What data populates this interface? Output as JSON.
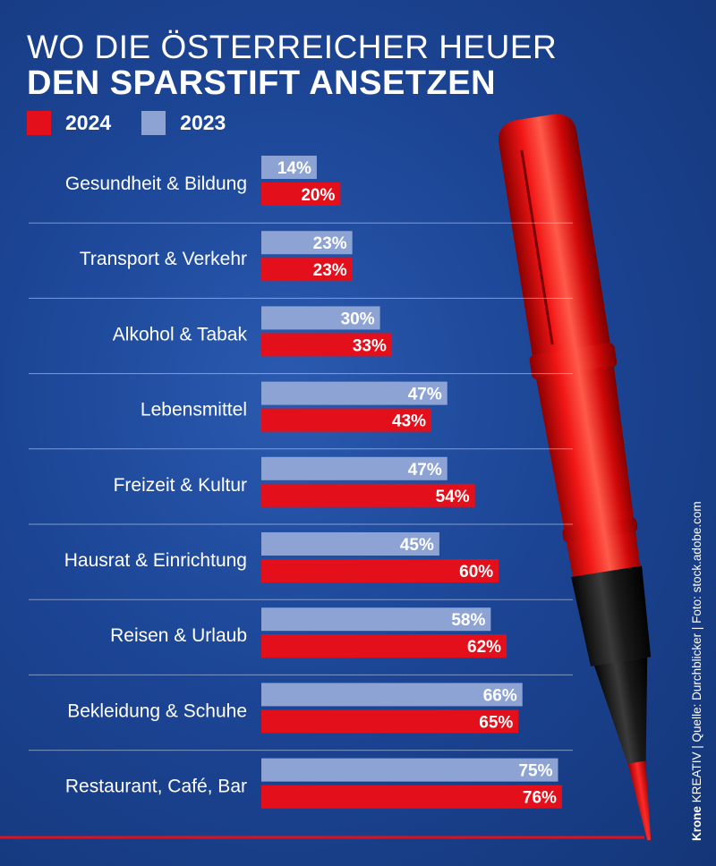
{
  "header": {
    "title_line1": "WO DIE ÖSTERREICHER HEUER",
    "title_line2": "DEN SPARSTIFT ANSETZEN"
  },
  "legend": [
    {
      "label": "2024",
      "color": "#e3101b"
    },
    {
      "label": "2023",
      "color": "#8da3d3"
    }
  ],
  "chart_data": {
    "type": "bar",
    "orientation": "horizontal",
    "categories": [
      "Gesundheit & Bildung",
      "Transport & Verkehr",
      "Alkohol & Tabak",
      "Lebensmittel",
      "Freizeit & Kultur",
      "Hausrat & Einrichtung",
      "Reisen & Urlaub",
      "Bekleidung & Schuhe",
      "Restaurant, Café, Bar"
    ],
    "series": [
      {
        "name": "2023",
        "color": "#8da3d3",
        "values": [
          14,
          23,
          30,
          47,
          47,
          45,
          58,
          66,
          75
        ]
      },
      {
        "name": "2024",
        "color": "#e3101b",
        "values": [
          20,
          23,
          33,
          43,
          54,
          60,
          62,
          65,
          76
        ]
      }
    ],
    "value_suffix": "%",
    "xlim": [
      0,
      100
    ]
  },
  "credit": {
    "brand": "Krone",
    "rest": "KREATIV | Quelle: Durchblicker | Foto: stock.adobe.com"
  }
}
